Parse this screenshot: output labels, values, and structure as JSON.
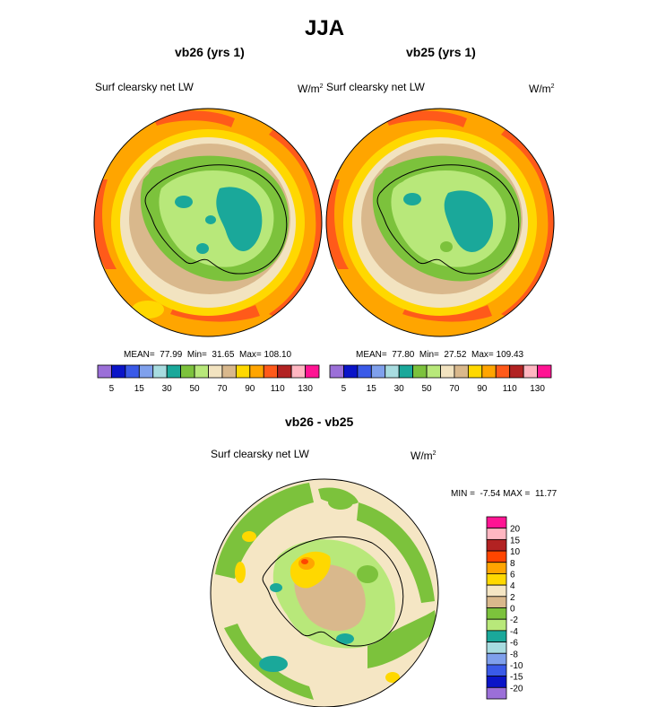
{
  "page_title": "JJA",
  "chart_data": [
    {
      "type": "heatmap",
      "title": "vb26 (yrs 1)",
      "variable": "Surf clearsky net LW",
      "units_base": "W/m",
      "units_exp": "2",
      "stats": {
        "mean_label": "MEAN=",
        "mean": "77.99",
        "min_label": "Min=",
        "min": "31.65",
        "max_label": "Max=",
        "max": "108.10"
      },
      "colorbar": {
        "levels": [
          5,
          10,
          15,
          20,
          30,
          40,
          50,
          60,
          70,
          80,
          90,
          100,
          110,
          120,
          130
        ],
        "tick_labels": [
          "5",
          "15",
          "30",
          "50",
          "70",
          "90",
          "110",
          "130"
        ],
        "colors": [
          "#9b6fd8",
          "#0a14c8",
          "#3a5ae8",
          "#7fa0ec",
          "#a8dce0",
          "#1aa89a",
          "#7cc23c",
          "#b8e87a",
          "#f2e3c0",
          "#d9b88c",
          "#ffd800",
          "#ffa500",
          "#ff5a1a",
          "#b22222",
          "#ffb6c1",
          "#ff1493"
        ]
      }
    },
    {
      "type": "heatmap",
      "title": "vb25 (yrs 1)",
      "variable": "Surf clearsky net LW",
      "units_base": "W/m",
      "units_exp": "2",
      "stats": {
        "mean_label": "MEAN=",
        "mean": "77.80",
        "min_label": "Min=",
        "min": "27.52",
        "max_label": "Max=",
        "max": "109.43"
      },
      "colorbar": {
        "levels": [
          5,
          10,
          15,
          20,
          30,
          40,
          50,
          60,
          70,
          80,
          90,
          100,
          110,
          120,
          130
        ],
        "tick_labels": [
          "5",
          "15",
          "30",
          "50",
          "70",
          "90",
          "110",
          "130"
        ],
        "colors": [
          "#9b6fd8",
          "#0a14c8",
          "#3a5ae8",
          "#7fa0ec",
          "#a8dce0",
          "#1aa89a",
          "#7cc23c",
          "#b8e87a",
          "#f2e3c0",
          "#d9b88c",
          "#ffd800",
          "#ffa500",
          "#ff5a1a",
          "#b22222",
          "#ffb6c1",
          "#ff1493"
        ]
      }
    },
    {
      "type": "heatmap",
      "title": "vb26 - vb25",
      "variable": "Surf clearsky net LW",
      "units_base": "W/m",
      "units_exp": "2",
      "stats": {
        "min_label": "MIN =",
        "min": "-7.54",
        "max_label": "MAX =",
        "max": "11.77"
      },
      "colorbar": {
        "levels": [
          20,
          15,
          10,
          8,
          6,
          4,
          2,
          0,
          -2,
          -4,
          -6,
          -8,
          -10,
          -15,
          -20
        ],
        "tick_labels": [
          "20",
          "15",
          "10",
          "8",
          "6",
          "4",
          "2",
          "0",
          "-2",
          "-4",
          "-6",
          "-8",
          "-10",
          "-15",
          "-20"
        ],
        "colors": [
          "#ff1493",
          "#ffb6c1",
          "#b22222",
          "#ff4500",
          "#ffa500",
          "#ffd800",
          "#f5e6c4",
          "#d9b88c",
          "#7cc23c",
          "#b8e87a",
          "#1aa89a",
          "#a8dce0",
          "#7fa0ec",
          "#3a5ae8",
          "#0a14c8",
          "#9b6fd8"
        ]
      }
    }
  ]
}
